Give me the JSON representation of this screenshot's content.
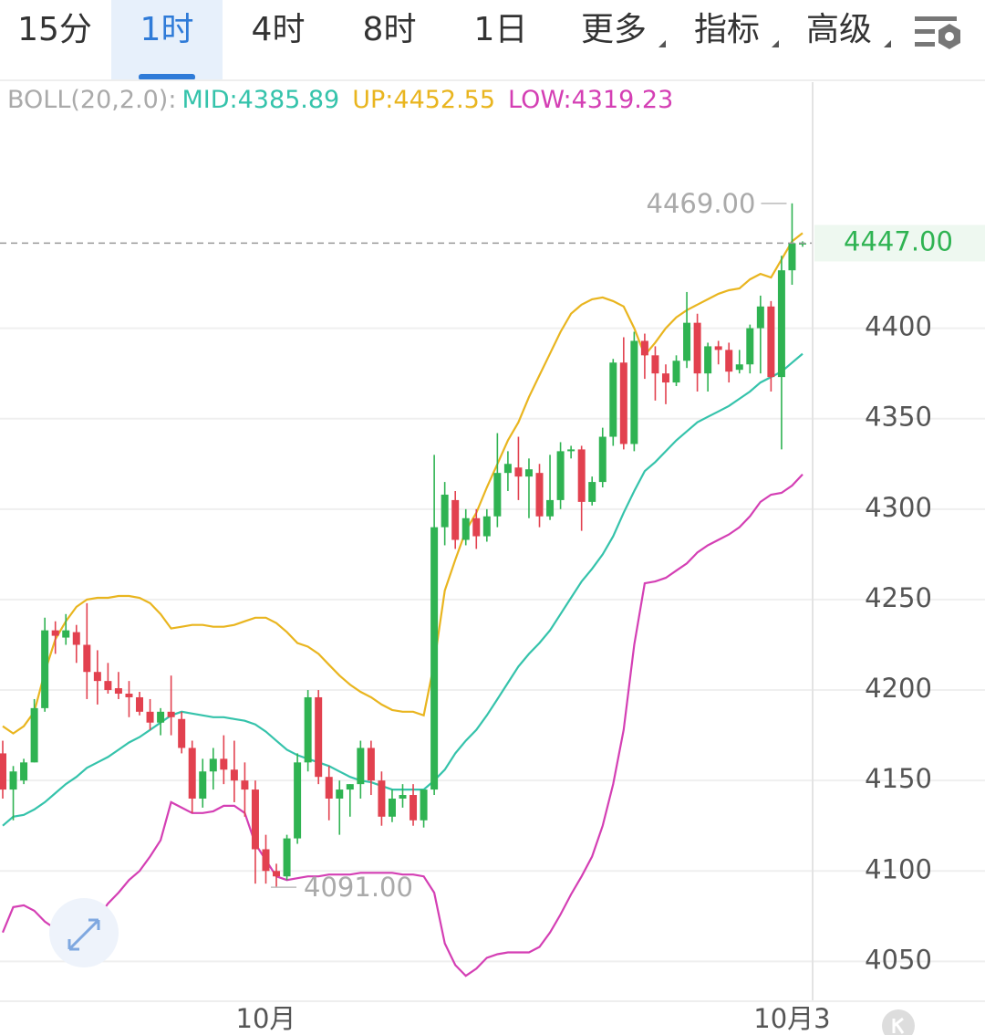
{
  "tabs": [
    {
      "label": "15分"
    },
    {
      "label": "1时",
      "active": true
    },
    {
      "label": "4时"
    },
    {
      "label": "8时"
    },
    {
      "label": "1日"
    },
    {
      "label": "更多",
      "menu": true
    },
    {
      "label": "指标",
      "menu": true
    },
    {
      "label": "高级",
      "menu": true
    }
  ],
  "chart_data": {
    "type": "candlestick",
    "indicator": "BOLL(20,2.0):",
    "legend": [
      {
        "label": "MID:4385.89",
        "color": "#35c3ab"
      },
      {
        "label": "UP:4452.55",
        "color": "#e9b51f"
      },
      {
        "label": "LOW:4319.23",
        "color": "#d43fb4"
      }
    ],
    "categories": [
      null,
      null,
      null,
      null,
      null,
      null,
      null,
      null,
      null,
      null,
      null,
      null,
      null,
      null,
      null,
      null,
      null,
      null,
      null,
      null,
      null,
      null,
      null,
      null,
      null,
      "10月",
      null,
      null,
      null,
      null,
      null,
      null,
      null,
      null,
      null,
      null,
      null,
      null,
      null,
      null,
      null,
      null,
      null,
      null,
      null,
      null,
      null,
      null,
      null,
      null,
      null,
      null,
      null,
      null,
      null,
      null,
      null,
      null,
      null,
      null,
      null,
      null,
      null,
      null,
      null,
      null,
      null,
      null,
      null,
      null,
      null,
      null,
      null,
      null,
      null,
      "10月3",
      null
    ],
    "open": [
      4165,
      4145,
      4150,
      4160,
      4190,
      4233,
      4229,
      4232,
      4225,
      4210,
      4205,
      4201,
      4198,
      4196,
      4188,
      4182,
      4188,
      4184,
      4168,
      4140,
      4155,
      4162,
      4156,
      4150,
      4145,
      4112,
      4100,
      4097,
      4118,
      4160,
      4196,
      4152,
      4140,
      4145,
      4148,
      4168,
      4150,
      4130,
      4140,
      4142,
      4128,
      4145,
      4290,
      4305,
      4283,
      4295,
      4285,
      4296,
      4320,
      4323,
      4318,
      4320,
      4296,
      4305,
      4332,
      4333,
      4304,
      4315,
      4340,
      4381,
      4336,
      4393,
      4385,
      4375,
      4370,
      4382,
      4403,
      4375,
      4390,
      4388,
      4377,
      4380,
      4400,
      4412,
      4373,
      4432,
      4447
    ],
    "high": [
      4172,
      4158,
      4162,
      4195,
      4240,
      4238,
      4242,
      4236,
      4248,
      4222,
      4215,
      4210,
      4205,
      4199,
      4195,
      4190,
      4208,
      4188,
      4172,
      4162,
      4168,
      4175,
      4172,
      4160,
      4150,
      4120,
      4104,
      4120,
      4165,
      4200,
      4200,
      4158,
      4150,
      4148,
      4172,
      4172,
      4155,
      4145,
      4148,
      4148,
      4145,
      4330,
      4315,
      4310,
      4300,
      4300,
      4300,
      4342,
      4332,
      4340,
      4328,
      4325,
      4330,
      4337,
      4335,
      4335,
      4318,
      4345,
      4383,
      4395,
      4398,
      4397,
      4390,
      4380,
      4385,
      4420,
      4408,
      4392,
      4393,
      4392,
      4388,
      4402,
      4418,
      4415,
      4440,
      4469,
      4448
    ],
    "low": [
      4140,
      4128,
      4148,
      4160,
      4188,
      4220,
      4225,
      4215,
      4195,
      4192,
      4198,
      4195,
      4185,
      4186,
      4178,
      4175,
      4175,
      4165,
      4132,
      4135,
      4145,
      4148,
      4138,
      4130,
      4093,
      4093,
      4091,
      4095,
      4115,
      4155,
      4148,
      4128,
      4120,
      4130,
      4140,
      4142,
      4125,
      4127,
      4135,
      4125,
      4124,
      4142,
      4280,
      4278,
      4280,
      4278,
      4282,
      4290,
      4310,
      4305,
      4295,
      4290,
      4294,
      4300,
      4328,
      4288,
      4302,
      4312,
      4335,
      4333,
      4332,
      4372,
      4360,
      4358,
      4368,
      4378,
      4365,
      4365,
      4380,
      4370,
      4375,
      4375,
      4375,
      4365,
      4333,
      4424,
      4445
    ],
    "close": [
      4145,
      4155,
      4160,
      4190,
      4233,
      4230,
      4233,
      4225,
      4210,
      4205,
      4200,
      4198,
      4196,
      4188,
      4182,
      4188,
      4185,
      4168,
      4140,
      4155,
      4162,
      4156,
      4150,
      4145,
      4112,
      4100,
      4097,
      4118,
      4160,
      4196,
      4152,
      4140,
      4145,
      4148,
      4168,
      4150,
      4130,
      4140,
      4142,
      4128,
      4145,
      4290,
      4308,
      4283,
      4295,
      4285,
      4296,
      4320,
      4325,
      4318,
      4322,
      4296,
      4305,
      4332,
      4333,
      4304,
      4315,
      4340,
      4381,
      4336,
      4393,
      4385,
      4375,
      4370,
      4382,
      4403,
      4375,
      4390,
      4388,
      4376,
      4380,
      4400,
      4412,
      4373,
      4432,
      4447,
      4447
    ],
    "up_color": "#2fb352",
    "down_color": "#e2414f",
    "series": [
      {
        "name": "UP",
        "color": "#e9b51f",
        "values": [
          4180,
          4176,
          4180,
          4188,
          4210,
          4228,
          4238,
          4246,
          4250,
          4251,
          4251,
          4252,
          4252,
          4251,
          4248,
          4242,
          4234,
          4235,
          4236,
          4236,
          4235,
          4235,
          4236,
          4238,
          4240,
          4240,
          4237,
          4232,
          4226,
          4224,
          4220,
          4214,
          4208,
          4203,
          4199,
          4196,
          4192,
          4189,
          4188,
          4188,
          4186,
          4215,
          4255,
          4272,
          4288,
          4298,
          4312,
          4325,
          4338,
          4348,
          4362,
          4374,
          4386,
          4398,
          4408,
          4413,
          4416,
          4417,
          4415,
          4412,
          4400,
          4385,
          4392,
          4400,
          4406,
          4410,
          4413,
          4416,
          4419,
          4421,
          4422,
          4427,
          4430,
          4428,
          4438,
          4448,
          4452.55
        ]
      },
      {
        "name": "MID",
        "color": "#35c3ab",
        "values": [
          4125,
          4130,
          4131,
          4134,
          4138,
          4143,
          4148,
          4152,
          4157,
          4160,
          4163,
          4167,
          4171,
          4174,
          4178,
          4182,
          4186,
          4188,
          4187,
          4186,
          4185,
          4185,
          4184,
          4183,
          4181,
          4177,
          4172,
          4167,
          4164,
          4162,
          4160,
          4158,
          4155,
          4152,
          4150,
          4149,
          4147,
          4145,
          4145,
          4145,
          4145,
          4150,
          4156,
          4165,
          4172,
          4178,
          4186,
          4195,
          4204,
          4213,
          4220,
          4226,
          4233,
          4242,
          4251,
          4260,
          4267,
          4275,
          4285,
          4298,
          4310,
          4321,
          4326,
          4332,
          4338,
          4343,
          4348,
          4351,
          4354,
          4357,
          4361,
          4365,
          4370,
          4373,
          4376,
          4381,
          4385.89
        ]
      },
      {
        "name": "LOW",
        "color": "#d43fb4",
        "values": [
          4066,
          4080,
          4081,
          4078,
          4072,
          4068,
          4066,
          4066,
          4068,
          4074,
          4082,
          4088,
          4095,
          4100,
          4108,
          4117,
          4138,
          4135,
          4132,
          4132,
          4133,
          4136,
          4136,
          4132,
          4115,
          4106,
          4097,
          4095,
          4096,
          4097,
          4097,
          4098,
          4098,
          4098,
          4099,
          4099,
          4099,
          4099,
          4098,
          4098,
          4097,
          4088,
          4060,
          4048,
          4042,
          4046,
          4052,
          4054,
          4055,
          4055,
          4055,
          4058,
          4066,
          4076,
          4087,
          4097,
          4108,
          4125,
          4148,
          4178,
          4225,
          4259,
          4260,
          4262,
          4266,
          4270,
          4276,
          4280,
          4283,
          4286,
          4290,
          4296,
          4304,
          4308,
          4309,
          4313,
          4319.23
        ]
      }
    ],
    "ylim": [
      4028,
      4536
    ],
    "yticks": [
      4050,
      4100,
      4150,
      4200,
      4250,
      4300,
      4350,
      4400
    ],
    "grid": true,
    "last_price": {
      "value": 4447,
      "label": "4447.00",
      "color": "#2fb352"
    },
    "annotations": [
      {
        "index": 75,
        "value": 4469,
        "label": "4469.00",
        "side": "left"
      },
      {
        "index": 26,
        "value": 4091,
        "label": "4091.00",
        "side": "right"
      }
    ]
  }
}
